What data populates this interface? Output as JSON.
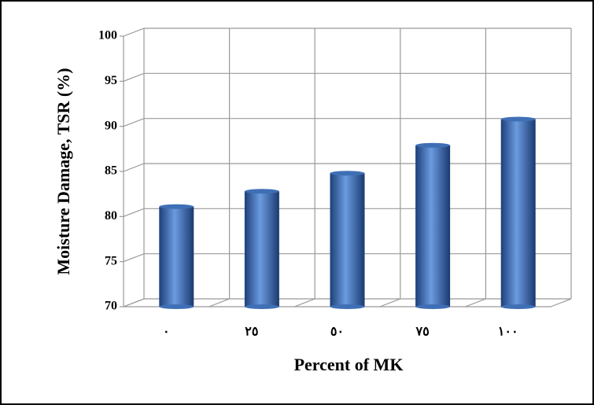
{
  "chart_data": {
    "type": "bar",
    "x_label": "Percent of MK",
    "y_label": "Moisture Damage, TSR (%)",
    "categories": [
      "٠",
      "٢٥",
      "٥٠",
      "٧٥",
      "١٠٠"
    ],
    "values": [
      81.1,
      82.8,
      84.8,
      87.9,
      90.8
    ],
    "color": "#3f6fb5",
    "ylim": [
      70,
      100
    ],
    "yticks": [
      70,
      75,
      80,
      85,
      90,
      95,
      100
    ],
    "grid": true
  }
}
